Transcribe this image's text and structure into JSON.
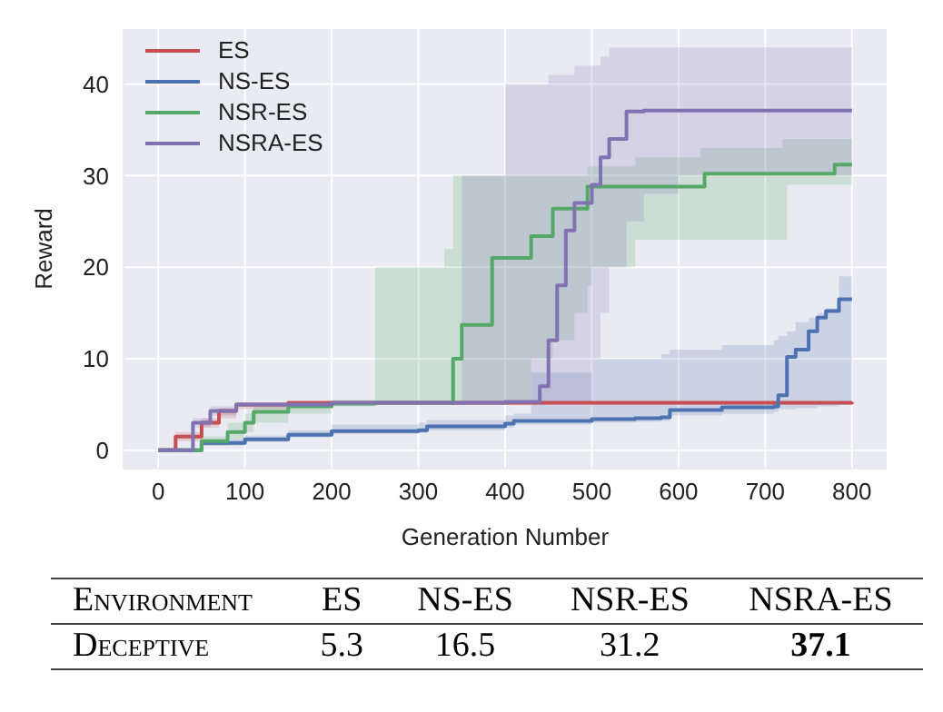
{
  "chart_data": [
    {
      "type": "step",
      "xlabel": "Generation Number",
      "ylabel": "Reward",
      "xlim": [
        -40,
        840
      ],
      "ylim": [
        -2,
        46
      ],
      "xticks": [
        0,
        100,
        200,
        300,
        400,
        500,
        600,
        700,
        800
      ],
      "yticks": [
        0,
        10,
        20,
        30,
        40
      ],
      "grid": true,
      "legend": "top left",
      "series": [
        {
          "name": "ES",
          "color": "#c44e52",
          "x": [
            0,
            20,
            50,
            70,
            90,
            150,
            800
          ],
          "values": [
            0,
            1.5,
            3,
            4.3,
            5,
            5.2,
            5.3
          ],
          "lower": [
            0,
            1,
            2.5,
            3.5,
            4.5,
            5,
            5.2
          ],
          "upper": [
            0,
            2,
            3.5,
            4.6,
            5.1,
            5.3,
            5.4
          ]
        },
        {
          "name": "NS-ES",
          "color": "#4c72b0",
          "x": [
            0,
            50,
            100,
            150,
            200,
            300,
            310,
            400,
            410,
            430,
            500,
            550,
            580,
            590,
            650,
            710,
            715,
            725,
            735,
            750,
            760,
            770,
            785,
            800
          ],
          "values": [
            0,
            0.8,
            1.2,
            1.7,
            2.1,
            2.2,
            2.6,
            2.9,
            3.2,
            3.2,
            3.4,
            3.5,
            3.6,
            4.4,
            4.7,
            4.8,
            6,
            10.2,
            11,
            13,
            14.5,
            15.2,
            16.5,
            16.5
          ],
          "lower": [
            0,
            0.5,
            0.9,
            1.4,
            1.8,
            1.9,
            2.2,
            2.5,
            2.8,
            2.8,
            3,
            3.1,
            3.2,
            3.8,
            4,
            4.2,
            4.5,
            4.5,
            4.6,
            4.6,
            4.8,
            4.8,
            5,
            5
          ],
          "upper": [
            0,
            1.2,
            1.6,
            2.2,
            2.8,
            3,
            3.3,
            3.8,
            4,
            8.5,
            10,
            10,
            10.5,
            11,
            11.5,
            12,
            12.5,
            13,
            14,
            14.5,
            15,
            15.5,
            19,
            19
          ]
        },
        {
          "name": "NSR-ES",
          "color": "#55a868",
          "x": [
            0,
            50,
            80,
            100,
            110,
            150,
            200,
            250,
            330,
            340,
            350,
            380,
            385,
            420,
            430,
            450,
            455,
            480,
            495,
            500,
            550,
            625,
            630,
            720,
            725,
            770,
            780,
            800
          ],
          "values": [
            0,
            1,
            2,
            3,
            4.2,
            4.8,
            5.1,
            5.2,
            5.2,
            10,
            13.7,
            13.7,
            21,
            21,
            23.4,
            23.4,
            26.4,
            26.4,
            28.8,
            28.8,
            28.8,
            28.8,
            30.2,
            30.2,
            30.2,
            30.2,
            31.2,
            31.2
          ],
          "lower": [
            0,
            0.5,
            1.2,
            2,
            3,
            4,
            4.8,
            5,
            5,
            5.2,
            5.2,
            5.2,
            5.2,
            5.2,
            10,
            10,
            12,
            15,
            18,
            20,
            23,
            23,
            23,
            23,
            29,
            29,
            29,
            29
          ],
          "upper": [
            0,
            1.5,
            3,
            4,
            5,
            5.2,
            5.5,
            20,
            22,
            30,
            30,
            30,
            30,
            30,
            30,
            30,
            30,
            30,
            31,
            31,
            32,
            33,
            33,
            34,
            34,
            34,
            34,
            34
          ]
        },
        {
          "name": "NSRA-ES",
          "color": "#8172b2",
          "x": [
            0,
            40,
            60,
            90,
            200,
            350,
            400,
            435,
            440,
            450,
            460,
            470,
            480,
            500,
            510,
            520,
            540,
            560,
            600,
            800
          ],
          "values": [
            0,
            3,
            4.3,
            5,
            5.2,
            5.2,
            5.3,
            5.3,
            7,
            12,
            18,
            24,
            27,
            29,
            32,
            34,
            37,
            37.1,
            37.1,
            37.1
          ],
          "lower": [
            0,
            2.5,
            3.8,
            4.8,
            5,
            5,
            5,
            5,
            5.2,
            5.2,
            5.2,
            5.2,
            5.2,
            10,
            15,
            20,
            25,
            28,
            30,
            30
          ],
          "upper": [
            0,
            3.5,
            4.8,
            5.2,
            5.4,
            30,
            40,
            40,
            40,
            41,
            41,
            41,
            42,
            42,
            43,
            44,
            44,
            44,
            44,
            44
          ]
        }
      ]
    },
    {
      "type": "other",
      "categories": [
        "Environment",
        "ES",
        "NS-ES",
        "NSR-ES",
        "NSRA-ES"
      ],
      "annotations": [
        "Deceptive",
        "5.3",
        "16.5",
        "31.2",
        "37.1"
      ]
    }
  ]
}
